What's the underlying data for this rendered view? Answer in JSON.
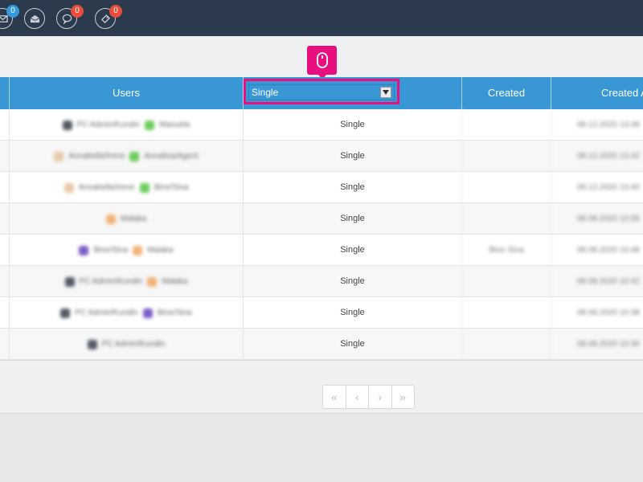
{
  "topbar": {
    "icons": [
      {
        "name": "mail-icon",
        "badge": "0",
        "badge_color": "#3498db"
      },
      {
        "name": "envelope-open-icon",
        "badge": ""
      },
      {
        "name": "chat-icon",
        "badge": "0",
        "badge_color": "#e74c3c"
      },
      {
        "name": "ticket-icon",
        "badge": "0",
        "badge_color": "#e74c3c"
      }
    ]
  },
  "table": {
    "headers": {
      "users": "Users",
      "type": "Single",
      "created": "Created",
      "created_at": "Created A"
    },
    "filter_value": "Single",
    "rows": [
      {
        "users": "PC Admin/Kundin  Manuela",
        "type": "Single",
        "created": "",
        "created_at": "08.12.2020 13:48"
      },
      {
        "users": "Annabella/Irene  Annalisa/Agent",
        "type": "Single",
        "created": "",
        "created_at": "08.12.2020 13:42"
      },
      {
        "users": "Annabella/Irene  Bine/Sina",
        "type": "Single",
        "created": "",
        "created_at": "08.12.2020 13:40"
      },
      {
        "users": "Malaka",
        "type": "Single",
        "created": "",
        "created_at": "08.08.2020 10:55"
      },
      {
        "users": "Bine/Sina  Malaka",
        "type": "Single",
        "created": "Bine Sina",
        "created_at": "08.08.2020 10:48"
      },
      {
        "users": "PC Admin/Kundin  Malaka",
        "type": "Single",
        "created": "",
        "created_at": "08.08.2020 10:42"
      },
      {
        "users": "PC Admin/Kundin  Bine/Sina",
        "type": "Single",
        "created": "",
        "created_at": "08.08.2020 10:38"
      },
      {
        "users": "PC Admin/Kundin",
        "type": "Single",
        "created": "",
        "created_at": "08.08.2020 10:30"
      }
    ]
  },
  "pagination": {
    "first": "«",
    "prev": "‹",
    "next": "›",
    "last": "»"
  },
  "colors": {
    "topbar": "#2c3a4e",
    "header": "#3a97d6",
    "highlight": "#e8107f"
  }
}
